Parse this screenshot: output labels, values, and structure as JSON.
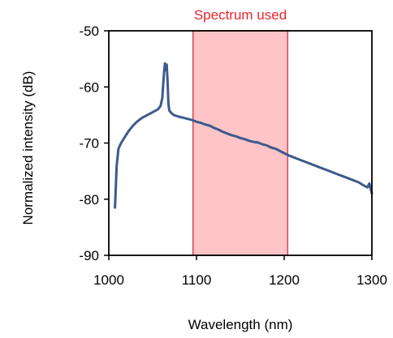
{
  "chart_data": {
    "type": "line",
    "xlabel": "Wavelength (nm)",
    "ylabel": "Normalized intensity (dB)",
    "xlim": [
      1000,
      1300
    ],
    "ylim": [
      -90,
      -50
    ],
    "xticks": [
      1000,
      1100,
      1200,
      1300
    ],
    "yticks": [
      -50,
      -60,
      -70,
      -80,
      -90
    ],
    "grid": false,
    "legend": "none",
    "colors": {
      "line": "#3c5a8c",
      "shade_fill": "#ffc4c8",
      "shade_stroke": "#d9474d",
      "annotation_text": "#e8242c"
    },
    "shaded_region": {
      "label": "Spectrum used",
      "x_range": [
        1096,
        1204
      ]
    },
    "series": [
      {
        "x": [
          1007,
          1008,
          1009,
          1011,
          1014,
          1018,
          1022,
          1027,
          1032,
          1038,
          1044,
          1050,
          1056,
          1059,
          1061,
          1062,
          1063,
          1064,
          1065,
          1066,
          1067,
          1068,
          1069,
          1071,
          1074,
          1080,
          1085,
          1090,
          1095,
          1100,
          1105,
          1110,
          1115,
          1120,
          1125,
          1130,
          1135,
          1140,
          1145,
          1150,
          1155,
          1160,
          1165,
          1170,
          1175,
          1180,
          1185,
          1190,
          1195,
          1200,
          1205,
          1210,
          1215,
          1220,
          1225,
          1230,
          1235,
          1240,
          1245,
          1250,
          1255,
          1260,
          1265,
          1270,
          1275,
          1280,
          1285,
          1290,
          1295,
          1297,
          1299,
          1300
        ],
        "y": [
          -81.5,
          -78.0,
          -74.0,
          -71.0,
          -70.0,
          -69.0,
          -68.0,
          -67.0,
          -66.2,
          -65.5,
          -65.0,
          -64.5,
          -64.0,
          -63.4,
          -62.0,
          -59.5,
          -57.5,
          -55.8,
          -57.0,
          -56.0,
          -59.0,
          -63.0,
          -64.2,
          -64.6,
          -65.0,
          -65.3,
          -65.5,
          -65.7,
          -65.9,
          -66.2,
          -66.4,
          -66.7,
          -66.9,
          -67.3,
          -67.6,
          -68.0,
          -68.3,
          -68.6,
          -68.8,
          -69.1,
          -69.3,
          -69.6,
          -69.8,
          -69.9,
          -70.2,
          -70.4,
          -70.8,
          -71.0,
          -71.4,
          -71.8,
          -72.2,
          -72.5,
          -72.8,
          -73.1,
          -73.4,
          -73.7,
          -74.0,
          -74.3,
          -74.6,
          -74.9,
          -75.2,
          -75.5,
          -75.8,
          -76.1,
          -76.4,
          -76.7,
          -77.0,
          -77.5,
          -77.9,
          -77.2,
          -78.4,
          -79.0
        ]
      }
    ]
  }
}
